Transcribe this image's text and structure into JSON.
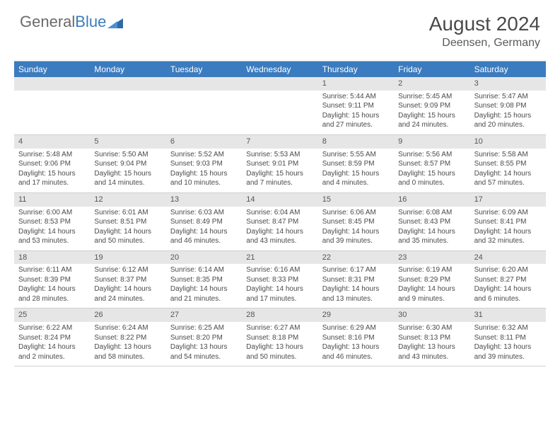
{
  "brand": {
    "word1": "General",
    "word2": "Blue"
  },
  "colors": {
    "accent": "#3b7bbf",
    "header_bg": "#3b7bbf",
    "header_text": "#ffffff",
    "daynum_bg": "#e6e6e6",
    "border": "#cfcfcf",
    "text": "#4a4a4a",
    "page_bg": "#ffffff"
  },
  "title": "August 2024",
  "subtitle": "Deensen, Germany",
  "day_names_fontsize": 12,
  "cell_fontsize": 10,
  "title_fontsize": 28,
  "subtitle_fontsize": 16,
  "day_names": [
    "Sunday",
    "Monday",
    "Tuesday",
    "Wednesday",
    "Thursday",
    "Friday",
    "Saturday"
  ],
  "weeks": [
    [
      {
        "empty": true
      },
      {
        "empty": true
      },
      {
        "empty": true
      },
      {
        "empty": true
      },
      {
        "n": "1",
        "sr": "Sunrise: 5:44 AM",
        "ss": "Sunset: 9:11 PM",
        "dl": "Daylight: 15 hours and 27 minutes."
      },
      {
        "n": "2",
        "sr": "Sunrise: 5:45 AM",
        "ss": "Sunset: 9:09 PM",
        "dl": "Daylight: 15 hours and 24 minutes."
      },
      {
        "n": "3",
        "sr": "Sunrise: 5:47 AM",
        "ss": "Sunset: 9:08 PM",
        "dl": "Daylight: 15 hours and 20 minutes."
      }
    ],
    [
      {
        "n": "4",
        "sr": "Sunrise: 5:48 AM",
        "ss": "Sunset: 9:06 PM",
        "dl": "Daylight: 15 hours and 17 minutes."
      },
      {
        "n": "5",
        "sr": "Sunrise: 5:50 AM",
        "ss": "Sunset: 9:04 PM",
        "dl": "Daylight: 15 hours and 14 minutes."
      },
      {
        "n": "6",
        "sr": "Sunrise: 5:52 AM",
        "ss": "Sunset: 9:03 PM",
        "dl": "Daylight: 15 hours and 10 minutes."
      },
      {
        "n": "7",
        "sr": "Sunrise: 5:53 AM",
        "ss": "Sunset: 9:01 PM",
        "dl": "Daylight: 15 hours and 7 minutes."
      },
      {
        "n": "8",
        "sr": "Sunrise: 5:55 AM",
        "ss": "Sunset: 8:59 PM",
        "dl": "Daylight: 15 hours and 4 minutes."
      },
      {
        "n": "9",
        "sr": "Sunrise: 5:56 AM",
        "ss": "Sunset: 8:57 PM",
        "dl": "Daylight: 15 hours and 0 minutes."
      },
      {
        "n": "10",
        "sr": "Sunrise: 5:58 AM",
        "ss": "Sunset: 8:55 PM",
        "dl": "Daylight: 14 hours and 57 minutes."
      }
    ],
    [
      {
        "n": "11",
        "sr": "Sunrise: 6:00 AM",
        "ss": "Sunset: 8:53 PM",
        "dl": "Daylight: 14 hours and 53 minutes."
      },
      {
        "n": "12",
        "sr": "Sunrise: 6:01 AM",
        "ss": "Sunset: 8:51 PM",
        "dl": "Daylight: 14 hours and 50 minutes."
      },
      {
        "n": "13",
        "sr": "Sunrise: 6:03 AM",
        "ss": "Sunset: 8:49 PM",
        "dl": "Daylight: 14 hours and 46 minutes."
      },
      {
        "n": "14",
        "sr": "Sunrise: 6:04 AM",
        "ss": "Sunset: 8:47 PM",
        "dl": "Daylight: 14 hours and 43 minutes."
      },
      {
        "n": "15",
        "sr": "Sunrise: 6:06 AM",
        "ss": "Sunset: 8:45 PM",
        "dl": "Daylight: 14 hours and 39 minutes."
      },
      {
        "n": "16",
        "sr": "Sunrise: 6:08 AM",
        "ss": "Sunset: 8:43 PM",
        "dl": "Daylight: 14 hours and 35 minutes."
      },
      {
        "n": "17",
        "sr": "Sunrise: 6:09 AM",
        "ss": "Sunset: 8:41 PM",
        "dl": "Daylight: 14 hours and 32 minutes."
      }
    ],
    [
      {
        "n": "18",
        "sr": "Sunrise: 6:11 AM",
        "ss": "Sunset: 8:39 PM",
        "dl": "Daylight: 14 hours and 28 minutes."
      },
      {
        "n": "19",
        "sr": "Sunrise: 6:12 AM",
        "ss": "Sunset: 8:37 PM",
        "dl": "Daylight: 14 hours and 24 minutes."
      },
      {
        "n": "20",
        "sr": "Sunrise: 6:14 AM",
        "ss": "Sunset: 8:35 PM",
        "dl": "Daylight: 14 hours and 21 minutes."
      },
      {
        "n": "21",
        "sr": "Sunrise: 6:16 AM",
        "ss": "Sunset: 8:33 PM",
        "dl": "Daylight: 14 hours and 17 minutes."
      },
      {
        "n": "22",
        "sr": "Sunrise: 6:17 AM",
        "ss": "Sunset: 8:31 PM",
        "dl": "Daylight: 14 hours and 13 minutes."
      },
      {
        "n": "23",
        "sr": "Sunrise: 6:19 AM",
        "ss": "Sunset: 8:29 PM",
        "dl": "Daylight: 14 hours and 9 minutes."
      },
      {
        "n": "24",
        "sr": "Sunrise: 6:20 AM",
        "ss": "Sunset: 8:27 PM",
        "dl": "Daylight: 14 hours and 6 minutes."
      }
    ],
    [
      {
        "n": "25",
        "sr": "Sunrise: 6:22 AM",
        "ss": "Sunset: 8:24 PM",
        "dl": "Daylight: 14 hours and 2 minutes."
      },
      {
        "n": "26",
        "sr": "Sunrise: 6:24 AM",
        "ss": "Sunset: 8:22 PM",
        "dl": "Daylight: 13 hours and 58 minutes."
      },
      {
        "n": "27",
        "sr": "Sunrise: 6:25 AM",
        "ss": "Sunset: 8:20 PM",
        "dl": "Daylight: 13 hours and 54 minutes."
      },
      {
        "n": "28",
        "sr": "Sunrise: 6:27 AM",
        "ss": "Sunset: 8:18 PM",
        "dl": "Daylight: 13 hours and 50 minutes."
      },
      {
        "n": "29",
        "sr": "Sunrise: 6:29 AM",
        "ss": "Sunset: 8:16 PM",
        "dl": "Daylight: 13 hours and 46 minutes."
      },
      {
        "n": "30",
        "sr": "Sunrise: 6:30 AM",
        "ss": "Sunset: 8:13 PM",
        "dl": "Daylight: 13 hours and 43 minutes."
      },
      {
        "n": "31",
        "sr": "Sunrise: 6:32 AM",
        "ss": "Sunset: 8:11 PM",
        "dl": "Daylight: 13 hours and 39 minutes."
      }
    ]
  ]
}
